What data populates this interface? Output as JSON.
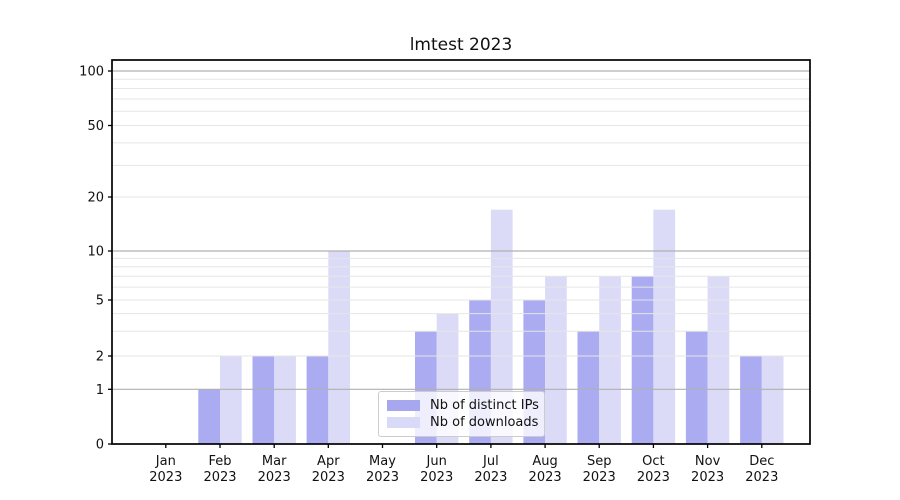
{
  "figure": {
    "background": "#ffffff"
  },
  "chart_data": {
    "type": "bar",
    "title": "lmtest 2023",
    "categories": [
      "Jan",
      "Feb",
      "Mar",
      "Apr",
      "May",
      "Jun",
      "Jul",
      "Aug",
      "Sep",
      "Oct",
      "Nov",
      "Dec"
    ],
    "category_sublabel": "2023",
    "series": [
      {
        "name": "Nb of distinct IPs",
        "color": "#a7a7f0",
        "values": [
          0,
          1,
          2,
          2,
          0,
          3,
          5,
          5,
          3,
          7,
          3,
          2
        ]
      },
      {
        "name": "Nb of downloads",
        "color": "#d9d9f8",
        "values": [
          0,
          2,
          2,
          10,
          0,
          4,
          17,
          7,
          7,
          17,
          7,
          2
        ]
      }
    ],
    "xlabel": "",
    "ylabel": "",
    "y_axis": {
      "scale": "symlog (linear 0-1, logarithmic above 1)",
      "tick_labels": [
        "0",
        "1",
        "2",
        "5",
        "10",
        "20",
        "50",
        "100"
      ],
      "tick_values": [
        0,
        1,
        2,
        5,
        10,
        20,
        50,
        100
      ],
      "major_gridlines": [
        1,
        10,
        100
      ],
      "minor_gridlines": [
        2,
        3,
        4,
        5,
        6,
        7,
        8,
        9,
        20,
        30,
        40,
        50,
        60,
        70,
        80,
        90
      ],
      "ylim": [
        0,
        115
      ]
    },
    "grid": "horizontal only, drawn above bars",
    "legend": {
      "position": "inside bottom-center"
    }
  },
  "colors": {
    "bar_dark": "#a7a7f0",
    "bar_light": "#d9d9f8",
    "major_grid": "#b0b0b0",
    "minor_grid": "#e6e6e6",
    "axis_line": "#000000",
    "text": "#111111"
  }
}
